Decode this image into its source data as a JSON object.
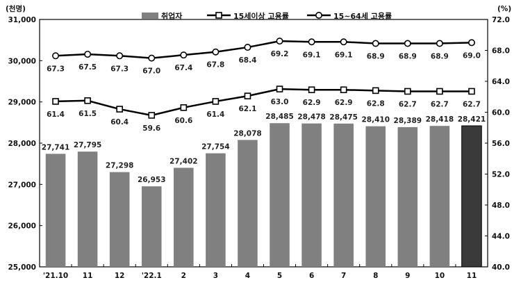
{
  "chart_data": {
    "type": "bar",
    "title": "",
    "left_unit": "(천명)",
    "right_unit": "(%)",
    "categories": [
      "'21.10",
      "11",
      "12",
      "'22.1",
      "2",
      "3",
      "4",
      "5",
      "6",
      "7",
      "8",
      "9",
      "10",
      "11"
    ],
    "left_axis": {
      "min": 25000,
      "max": 31000,
      "ticks": [
        "25,000",
        "26,000",
        "27,000",
        "28,000",
        "29,000",
        "30,000",
        "31,000"
      ]
    },
    "right_axis": {
      "min": 40.0,
      "max": 72.0,
      "ticks": [
        "40.0",
        "44.0",
        "48.0",
        "52.0",
        "56.0",
        "60.0",
        "64.0",
        "68.0",
        "72.0"
      ]
    },
    "legend": [
      "취업자",
      "15세이상 고용률",
      "15~64세 고용률"
    ],
    "bars": {
      "name": "취업자",
      "values": [
        27741,
        27795,
        27298,
        26953,
        27402,
        27754,
        28078,
        28485,
        28478,
        28475,
        28410,
        28389,
        28418,
        28421
      ],
      "labels": [
        "27,741",
        "27,795",
        "27,298",
        "26,953",
        "27,402",
        "27,754",
        "28,078",
        "28,485",
        "28,478",
        "28,475",
        "28,410",
        "28,389",
        "28,418",
        "28,421"
      ],
      "color": "#808080",
      "highlight_color": "#3a3a3a",
      "highlight_last": true
    },
    "lines": [
      {
        "name": "15세이상 고용률",
        "marker": "square",
        "values": [
          61.4,
          61.5,
          60.4,
          59.6,
          60.6,
          61.4,
          62.1,
          63.0,
          62.9,
          62.9,
          62.8,
          62.7,
          62.7,
          62.7
        ],
        "labels": [
          "61.4",
          "61.5",
          "60.4",
          "59.6",
          "60.6",
          "61.4",
          "62.1",
          "63.0",
          "62.9",
          "62.9",
          "62.8",
          "62.7",
          "62.7",
          "62.7"
        ]
      },
      {
        "name": "15~64세 고용률",
        "marker": "circle",
        "values": [
          67.3,
          67.5,
          67.3,
          67.0,
          67.4,
          67.8,
          68.4,
          69.2,
          69.1,
          69.1,
          68.9,
          68.9,
          68.9,
          69.0
        ],
        "labels": [
          "67.3",
          "67.5",
          "67.3",
          "67.0",
          "67.4",
          "67.8",
          "68.4",
          "69.2",
          "69.1",
          "69.1",
          "68.9",
          "68.9",
          "68.9",
          "69.0"
        ]
      }
    ],
    "legend_position": "top-center",
    "grid": false
  }
}
